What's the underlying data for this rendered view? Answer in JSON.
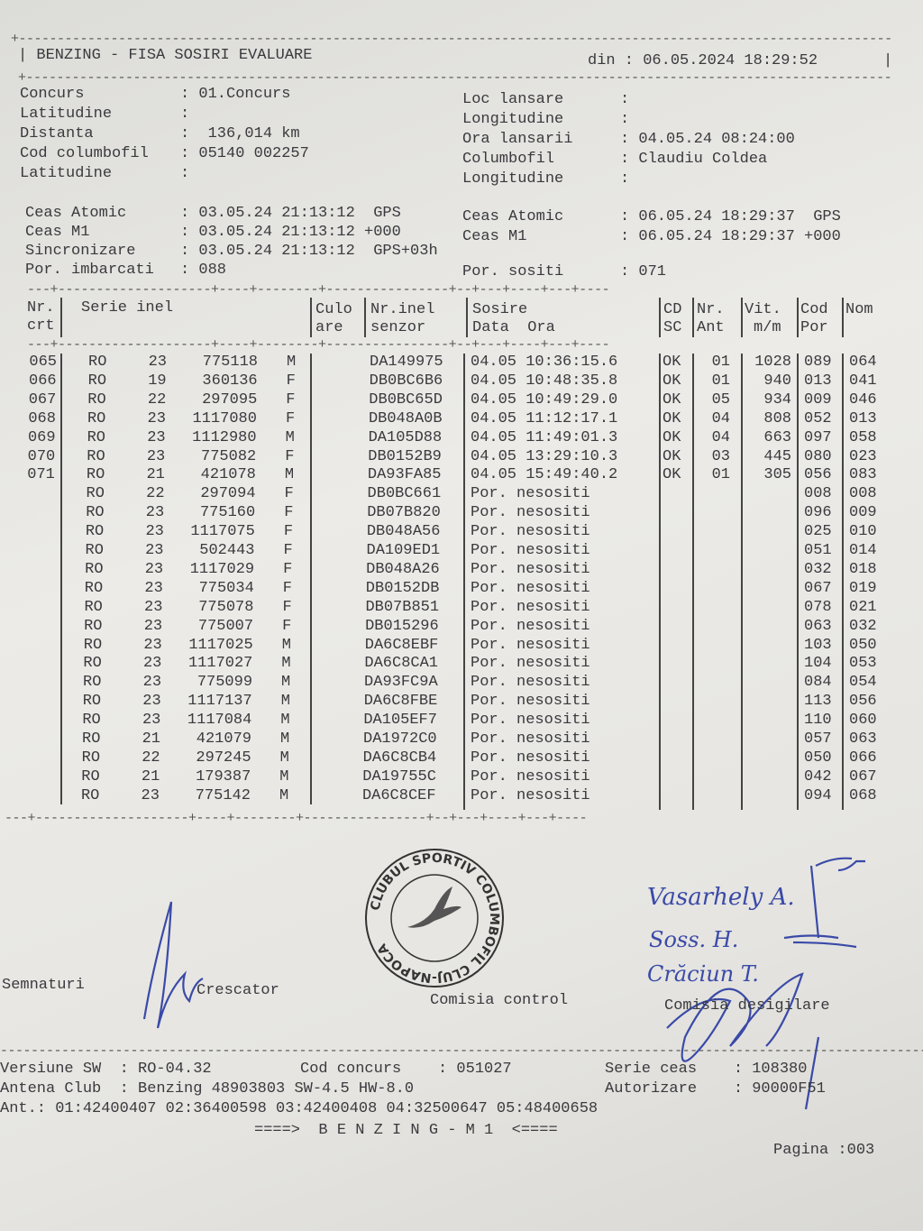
{
  "header": {
    "title": "BENZING - FISA SOSIRI EVALUARE",
    "date_label": "din : 06.05.2024 18:29:52"
  },
  "info_left": [
    {
      "label": "Concurs",
      "value": ": 01.Concurs"
    },
    {
      "label": "Latitudine",
      "value": ":"
    },
    {
      "label": "Distanta",
      "value": ":  136,014 km"
    },
    {
      "label": "Cod columbofil",
      "value": ": 05140 002257"
    },
    {
      "label": "Latitudine",
      "value": ":"
    }
  ],
  "info_right": [
    {
      "label": "Loc lansare",
      "value": ":"
    },
    {
      "label": "Longitudine",
      "value": ":"
    },
    {
      "label": "Ora lansarii",
      "value": ": 04.05.24 08:24:00"
    },
    {
      "label": "Columbofil",
      "value": ": Claudiu Coldea"
    },
    {
      "label": "Longitudine",
      "value": ":"
    }
  ],
  "clock_left": [
    {
      "label": "Ceas Atomic",
      "value": ": 03.05.24 21:13:12  GPS"
    },
    {
      "label": "Ceas M1",
      "value": ": 03.05.24 21:13:12 +000"
    },
    {
      "label": "Sincronizare",
      "value": ": 03.05.24 21:13:12  GPS+03h"
    },
    {
      "label": "Por. imbarcati",
      "value": ": 088"
    }
  ],
  "clock_right": [
    {
      "label": "Ceas Atomic",
      "value": ": 06.05.24 18:29:37  GPS"
    },
    {
      "label": "Ceas M1",
      "value": ": 06.05.24 18:29:37 +000"
    },
    {
      "label": "Por. sositi",
      "value": ": 071"
    }
  ],
  "table": {
    "headers": {
      "nr1": "Nr.",
      "nr2": "crt",
      "serie": "Serie inel",
      "cul1": "Culo",
      "cul2": "are",
      "senz1": "Nr.inel",
      "senz2": "senzor",
      "sos1": "Sosire",
      "sos2": "Data  Ora",
      "cd1": "CD",
      "cd2": "SC",
      "ant1": "Nr.",
      "ant2": "Ant",
      "vit1": "Vit.",
      "vit2": "m/m",
      "cod1": "Cod",
      "cod2": "Por",
      "nom": "Nom"
    },
    "rows": [
      [
        "065",
        "RO",
        "23",
        "775118",
        "M",
        "DA149975",
        "04.05 10:36:15.6",
        "OK",
        "01",
        "1028",
        "089",
        "064"
      ],
      [
        "066",
        "RO",
        "19",
        "360136",
        "F",
        "DB0BC6B6",
        "04.05 10:48:35.8",
        "OK",
        "01",
        "940",
        "013",
        "041"
      ],
      [
        "067",
        "RO",
        "22",
        "297095",
        "F",
        "DB0BC65D",
        "04.05 10:49:29.0",
        "OK",
        "05",
        "934",
        "009",
        "046"
      ],
      [
        "068",
        "RO",
        "23",
        "1117080",
        "F",
        "DB048A0B",
        "04.05 11:12:17.1",
        "OK",
        "04",
        "808",
        "052",
        "013"
      ],
      [
        "069",
        "RO",
        "23",
        "1112980",
        "M",
        "DA105D88",
        "04.05 11:49:01.3",
        "OK",
        "04",
        "663",
        "097",
        "058"
      ],
      [
        "070",
        "RO",
        "23",
        "775082",
        "F",
        "DB0152B9",
        "04.05 13:29:10.3",
        "OK",
        "03",
        "445",
        "080",
        "023"
      ],
      [
        "071",
        "RO",
        "21",
        "421078",
        "M",
        "DA93FA85",
        "04.05 15:49:40.2",
        "OK",
        "01",
        "305",
        "056",
        "083"
      ],
      [
        "",
        "RO",
        "22",
        "297094",
        "F",
        "DB0BC661",
        "Por. nesositi",
        "",
        "",
        "",
        "008",
        "008"
      ],
      [
        "",
        "RO",
        "23",
        "775160",
        "F",
        "DB07B820",
        "Por. nesositi",
        "",
        "",
        "",
        "096",
        "009"
      ],
      [
        "",
        "RO",
        "23",
        "1117075",
        "F",
        "DB048A56",
        "Por. nesositi",
        "",
        "",
        "",
        "025",
        "010"
      ],
      [
        "",
        "RO",
        "23",
        "502443",
        "F",
        "DA109ED1",
        "Por. nesositi",
        "",
        "",
        "",
        "051",
        "014"
      ],
      [
        "",
        "RO",
        "23",
        "1117029",
        "F",
        "DB048A26",
        "Por. nesositi",
        "",
        "",
        "",
        "032",
        "018"
      ],
      [
        "",
        "RO",
        "23",
        "775034",
        "F",
        "DB0152DB",
        "Por. nesositi",
        "",
        "",
        "",
        "067",
        "019"
      ],
      [
        "",
        "RO",
        "23",
        "775078",
        "F",
        "DB07B851",
        "Por. nesositi",
        "",
        "",
        "",
        "078",
        "021"
      ],
      [
        "",
        "RO",
        "23",
        "775007",
        "F",
        "DB015296",
        "Por. nesositi",
        "",
        "",
        "",
        "063",
        "032"
      ],
      [
        "",
        "RO",
        "23",
        "1117025",
        "M",
        "DA6C8EBF",
        "Por. nesositi",
        "",
        "",
        "",
        "103",
        "050"
      ],
      [
        "",
        "RO",
        "23",
        "1117027",
        "M",
        "DA6C8CA1",
        "Por. nesositi",
        "",
        "",
        "",
        "104",
        "053"
      ],
      [
        "",
        "RO",
        "23",
        "775099",
        "M",
        "DA93FC9A",
        "Por. nesositi",
        "",
        "",
        "",
        "084",
        "054"
      ],
      [
        "",
        "RO",
        "23",
        "1117137",
        "M",
        "DA6C8FBE",
        "Por. nesositi",
        "",
        "",
        "",
        "113",
        "056"
      ],
      [
        "",
        "RO",
        "23",
        "1117084",
        "M",
        "DA105EF7",
        "Por. nesositi",
        "",
        "",
        "",
        "110",
        "060"
      ],
      [
        "",
        "RO",
        "21",
        "421079",
        "M",
        "DA1972C0",
        "Por. nesositi",
        "",
        "",
        "",
        "057",
        "063"
      ],
      [
        "",
        "RO",
        "22",
        "297245",
        "M",
        "DA6C8CB4",
        "Por. nesositi",
        "",
        "",
        "",
        "050",
        "066"
      ],
      [
        "",
        "RO",
        "21",
        "179387",
        "M",
        "DA19755C",
        "Por. nesositi",
        "",
        "",
        "",
        "042",
        "067"
      ],
      [
        "",
        "RO",
        "23",
        "775142",
        "M",
        "DA6C8CEF",
        "Por. nesositi",
        "",
        "",
        "",
        "094",
        "068"
      ]
    ]
  },
  "signatures": {
    "semnaturi": "Semnaturi",
    "crescator": "Crescator",
    "comisia_control": "Comisia control",
    "comisia_desigilare": "Comisia desigilare",
    "handwritten": [
      "Vasarhely A.",
      "Soss. H.",
      "Crăciun T."
    ]
  },
  "stamp": {
    "text": "CLUBUL SPORTIV COLUMBOFIL CLUJ-NAPOCA"
  },
  "footer": {
    "l1a": "Versiune SW  : RO-04.32",
    "l1b": "Cod concurs    : 051027",
    "l1c": "Serie ceas    : 108380",
    "l2a": "Antena Club  : Benzing 48903803 SW-4.5 HW-8.0",
    "l2c": "Autorizare    : 90000F51",
    "l3": "Ant.: 01:42400407 02:36400598 03:42400408 04:32500647 05:48400658",
    "banner": "====>  B E N Z I N G - M 1  <====",
    "page": "Pagina :003"
  },
  "colors": {
    "ink": "#3a3a3e",
    "pen": "#3a4aa8",
    "paper": "#e9e8e4"
  }
}
